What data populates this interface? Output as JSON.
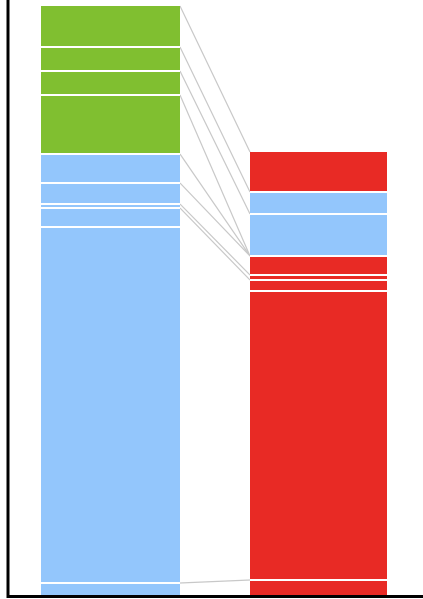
{
  "chart_data": {
    "type": "bar",
    "categories": [
      "",
      ""
    ],
    "stacks": [
      {
        "segments": [
          {
            "value": 41,
            "color": "#80bf30"
          },
          {
            "value": 24,
            "color": "#80bf30"
          },
          {
            "value": 24,
            "color": "#80bf30"
          },
          {
            "value": 59,
            "color": "#80bf30"
          },
          {
            "value": 29,
            "color": "#93c6fc"
          },
          {
            "value": 21,
            "color": "#93c6fc"
          },
          {
            "value": 4,
            "color": "#93c6fc"
          },
          {
            "value": 19,
            "color": "#93c6fc"
          },
          {
            "value": 356,
            "color": "#93c6fc"
          },
          {
            "value": 12,
            "color": "#93c6fc"
          }
        ]
      },
      {
        "segments": [
          {
            "value": 40,
            "color": "#e82a25"
          },
          {
            "value": 22,
            "color": "#93c6fc"
          },
          {
            "value": 42,
            "color": "#93c6fc"
          },
          {
            "value": 19,
            "color": "#e82a25"
          },
          {
            "value": 5,
            "color": "#e82a25"
          },
          {
            "value": 11,
            "color": "#e82a25"
          },
          {
            "value": 289,
            "color": "#e82a25"
          },
          {
            "value": 15,
            "color": "#e82a25"
          }
        ]
      }
    ],
    "links": [
      [
        0,
        0
      ],
      [
        1,
        1
      ],
      [
        2,
        2
      ],
      [
        3,
        3
      ],
      [
        4,
        3
      ],
      [
        5,
        3
      ],
      [
        6,
        4
      ],
      [
        7,
        5
      ],
      [
        9,
        7
      ]
    ],
    "xlabel": "",
    "ylabel": "",
    "grid": false,
    "legend": "none",
    "colors": {
      "green": "#80bf30",
      "blue": "#93c6fc",
      "red": "#e82a25",
      "link": "#c8c8c8",
      "axis": "#000000"
    }
  }
}
